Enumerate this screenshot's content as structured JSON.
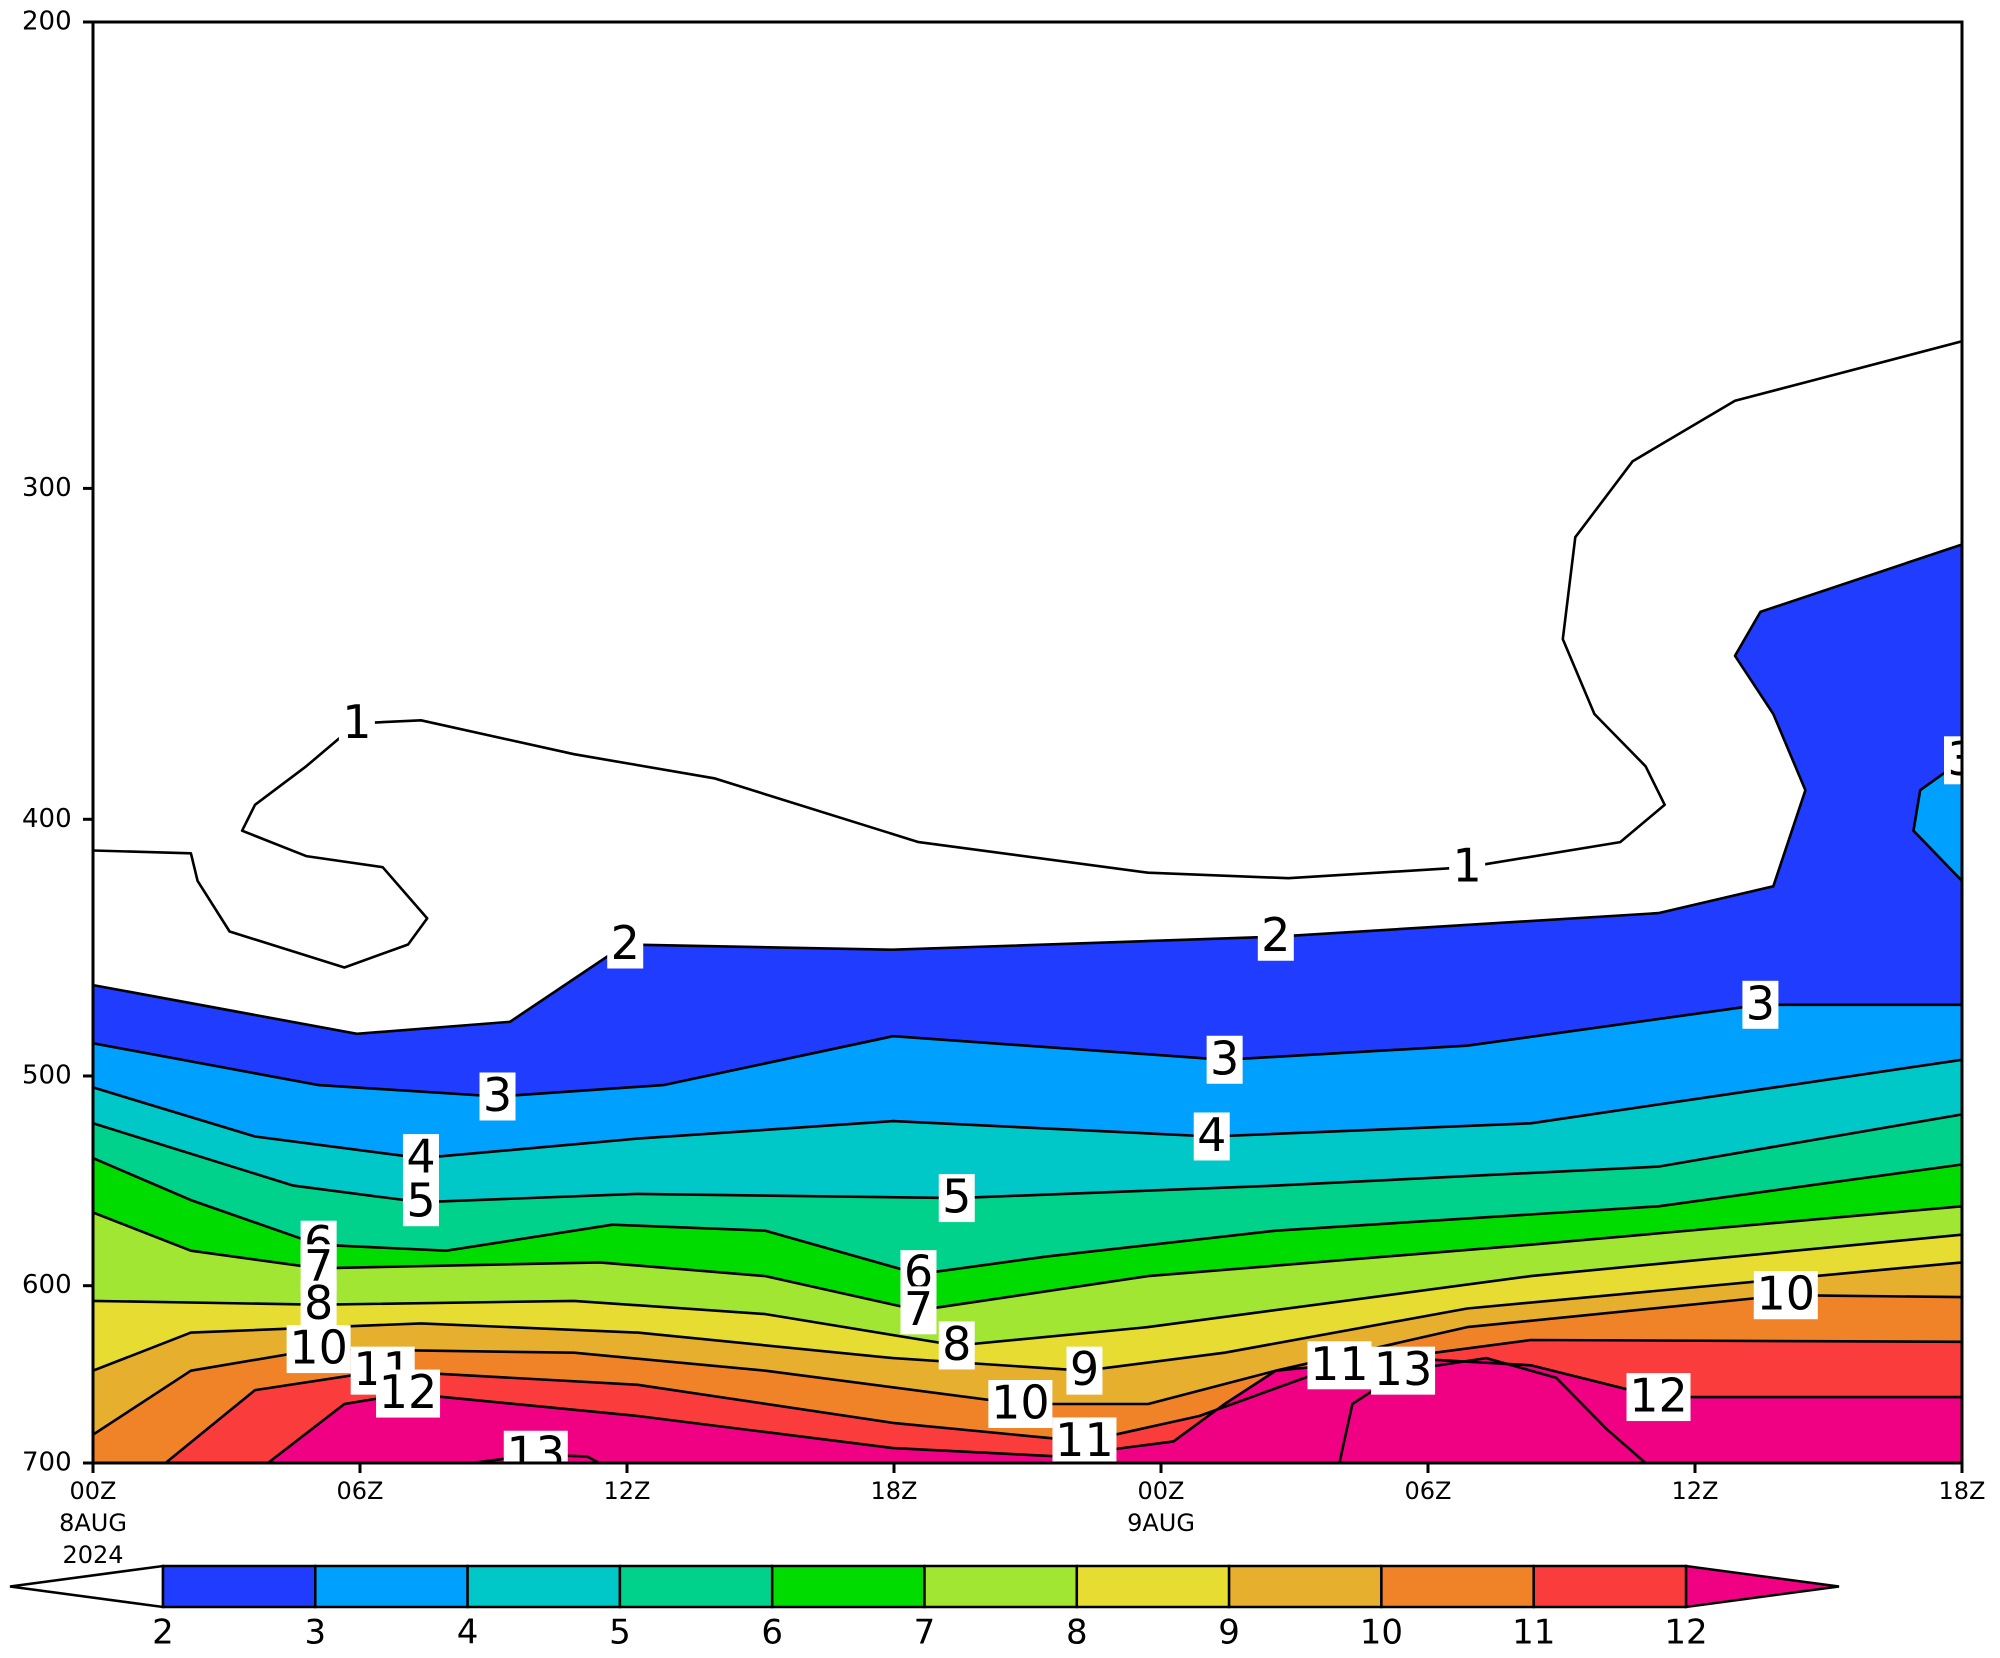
{
  "chart_data": {
    "type": "contour",
    "xlim": [
      0,
      42
    ],
    "xticks": [
      {
        "value": 0,
        "label": "00Z"
      },
      {
        "value": 6,
        "label": "06Z"
      },
      {
        "value": 12,
        "label": "12Z"
      },
      {
        "value": 18,
        "label": "18Z"
      },
      {
        "value": 24,
        "label": "00Z"
      },
      {
        "value": 30,
        "label": "06Z"
      },
      {
        "value": 36,
        "label": "12Z"
      },
      {
        "value": 42,
        "label": "18Z"
      }
    ],
    "xdates": [
      {
        "value": 0,
        "lines": [
          "8AUG",
          "2024"
        ]
      },
      {
        "value": 24,
        "lines": [
          "9AUG"
        ]
      }
    ],
    "ylim": [
      700,
      200
    ],
    "ylog": true,
    "yticks": [
      200,
      300,
      400,
      500,
      600,
      700
    ],
    "contours": [
      {
        "level": 1,
        "points": [
          [
            0,
            411
          ],
          [
            2.2,
            412
          ],
          [
            2.35,
            422
          ],
          [
            3.07,
            441
          ],
          [
            5.65,
            455
          ],
          [
            7.08,
            446
          ],
          [
            7.51,
            436
          ],
          [
            6.51,
            417
          ],
          [
            4.79,
            413
          ],
          [
            3.35,
            404
          ],
          [
            3.64,
            395
          ],
          [
            4.79,
            382
          ],
          [
            5.93,
            368
          ],
          [
            7.37,
            367
          ],
          [
            10.81,
            378
          ],
          [
            13.96,
            386
          ],
          [
            18.55,
            408
          ],
          [
            23.71,
            419
          ],
          [
            26.86,
            421
          ],
          [
            30.88,
            417
          ],
          [
            34.32,
            408
          ],
          [
            35.32,
            395
          ],
          [
            34.89,
            382
          ],
          [
            33.74,
            365
          ],
          [
            33.03,
            342
          ],
          [
            33.31,
            313
          ],
          [
            34.6,
            293
          ],
          [
            36.9,
            278
          ],
          [
            42,
            264
          ]
        ]
      },
      {
        "level": 2,
        "points": [
          [
            0,
            462
          ],
          [
            5.93,
            482
          ],
          [
            9.37,
            477
          ],
          [
            11.96,
            446
          ],
          [
            17.98,
            448
          ],
          [
            26.58,
            443
          ],
          [
            35.18,
            434
          ],
          [
            37.76,
            424
          ],
          [
            38.48,
            390
          ],
          [
            37.76,
            365
          ],
          [
            36.9,
            347
          ],
          [
            37.47,
            334
          ],
          [
            42,
            315
          ]
        ]
      },
      {
        "level": 3,
        "points": [
          [
            0,
            486
          ],
          [
            5.07,
            504
          ],
          [
            9.09,
            509
          ],
          [
            12.82,
            504
          ],
          [
            17.98,
            483
          ],
          [
            25.43,
            493
          ],
          [
            30.88,
            487
          ],
          [
            37.47,
            470
          ],
          [
            42,
            470
          ]
        ]
      },
      {
        "level": 3,
        "points": [
          [
            42,
            380
          ],
          [
            41.06,
            390
          ],
          [
            40.91,
            404
          ],
          [
            42,
            422
          ]
        ]
      },
      {
        "level": 4,
        "points": [
          [
            0,
            505
          ],
          [
            3.64,
            527
          ],
          [
            7.37,
            537
          ],
          [
            12.24,
            528
          ],
          [
            17.98,
            520
          ],
          [
            25.14,
            527
          ],
          [
            32.31,
            521
          ],
          [
            42,
            493
          ]
        ]
      },
      {
        "level": 5,
        "points": [
          [
            0,
            521
          ],
          [
            4.5,
            550
          ],
          [
            7.37,
            558
          ],
          [
            12.24,
            554
          ],
          [
            19.41,
            556
          ],
          [
            26.58,
            550
          ],
          [
            35.18,
            541
          ],
          [
            42,
            517
          ]
        ]
      },
      {
        "level": 6,
        "points": [
          [
            0,
            537
          ],
          [
            2.2,
            557
          ],
          [
            5.07,
            579
          ],
          [
            7.94,
            582
          ],
          [
            11.67,
            569
          ],
          [
            15.11,
            572
          ],
          [
            18.55,
            594
          ],
          [
            21.42,
            585
          ],
          [
            26.58,
            572
          ],
          [
            35.18,
            560
          ],
          [
            42,
            540
          ]
        ]
      },
      {
        "level": 7,
        "points": [
          [
            0,
            563
          ],
          [
            2.2,
            582
          ],
          [
            5.07,
            591
          ],
          [
            11.38,
            588
          ],
          [
            15.11,
            595
          ],
          [
            18.55,
            613
          ],
          [
            23.71,
            595
          ],
          [
            32.31,
            579
          ],
          [
            42,
            560
          ]
        ]
      },
      {
        "level": 8,
        "points": [
          [
            0,
            608
          ],
          [
            5.07,
            610
          ],
          [
            10.81,
            608
          ],
          [
            15.11,
            615
          ],
          [
            19.41,
            632
          ],
          [
            23.71,
            622
          ],
          [
            32.31,
            595
          ],
          [
            42,
            574
          ]
        ]
      },
      {
        "level": 9,
        "points": [
          [
            0,
            646
          ],
          [
            2.2,
            625
          ],
          [
            7.37,
            620
          ],
          [
            12.24,
            625
          ],
          [
            17.98,
            639
          ],
          [
            22.28,
            646
          ],
          [
            25.43,
            636
          ],
          [
            30.88,
            612
          ],
          [
            42,
            588
          ]
        ]
      },
      {
        "level": 10,
        "points": [
          [
            0,
            683
          ],
          [
            2.2,
            646
          ],
          [
            5.07,
            634
          ],
          [
            10.81,
            636
          ],
          [
            15.11,
            646
          ],
          [
            20.84,
            665
          ],
          [
            23.71,
            665
          ],
          [
            26.58,
            646
          ],
          [
            30.88,
            622
          ],
          [
            38.04,
            605
          ],
          [
            42,
            606
          ]
        ]
      },
      {
        "level": 11,
        "points": [
          [
            1.63,
            700
          ],
          [
            3.64,
            657
          ],
          [
            6.51,
            646
          ],
          [
            12.24,
            654
          ],
          [
            17.98,
            676
          ],
          [
            22.28,
            687
          ],
          [
            24.86,
            672
          ],
          [
            28.01,
            643
          ],
          [
            32.31,
            629
          ],
          [
            42,
            630
          ]
        ]
      },
      {
        "level": 12,
        "points": [
          [
            3.93,
            700
          ],
          [
            5.65,
            665
          ],
          [
            7.08,
            659
          ],
          [
            12.24,
            672
          ],
          [
            17.98,
            691
          ],
          [
            21.7,
            696
          ],
          [
            24.28,
            687
          ],
          [
            25.43,
            665
          ],
          [
            26.58,
            646
          ],
          [
            29.44,
            639
          ],
          [
            32.31,
            643
          ],
          [
            35.18,
            661
          ],
          [
            42,
            661
          ]
        ]
      },
      {
        "level": 13,
        "points": [
          [
            8.51,
            700
          ],
          [
            9.95,
            695
          ],
          [
            11.1,
            696
          ],
          [
            11.38,
            700
          ]
        ]
      },
      {
        "level": 13,
        "points": [
          [
            28.01,
            700
          ],
          [
            28.3,
            665
          ],
          [
            29.44,
            646
          ],
          [
            31.31,
            639
          ],
          [
            32.88,
            650
          ],
          [
            34.03,
            680
          ],
          [
            34.89,
            700
          ]
        ]
      }
    ],
    "colorbar": {
      "levels": [
        2,
        3,
        4,
        5,
        6,
        7,
        8,
        9,
        10,
        11,
        12
      ],
      "colors": [
        "#ffffff",
        "#1f3cff",
        "#00a0ff",
        "#00c8c8",
        "#00d28c",
        "#00dc00",
        "#a0e632",
        "#e6dc32",
        "#e6af2d",
        "#f08228",
        "#fa3c3c",
        "#f00082"
      ]
    }
  }
}
